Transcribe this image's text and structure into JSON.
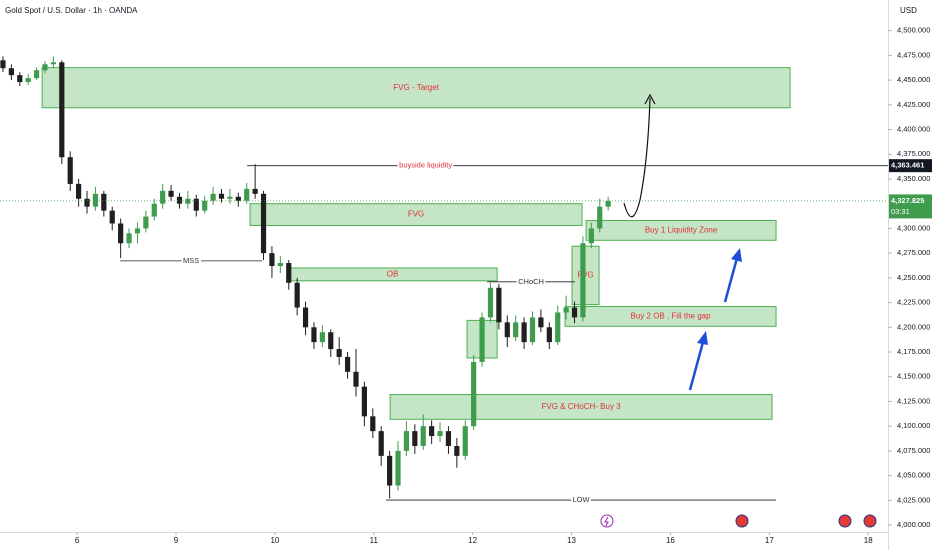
{
  "chart_data": {
    "type": "candlestick",
    "title": "Gold Spot / U.S. Dollar · 1h · OANDA",
    "currency": "USD",
    "up_color": "#3f9c4d",
    "down_color": "#1f1f1f",
    "xlim": [
      -0.78,
      8.2
    ],
    "ylim": [
      3993,
      4531
    ],
    "xticks": [
      {
        "value": 0,
        "label": "6"
      },
      {
        "value": 1,
        "label": "9"
      },
      {
        "value": 2,
        "label": "10"
      },
      {
        "value": 3,
        "label": "11"
      },
      {
        "value": 4,
        "label": "12"
      },
      {
        "value": 5,
        "label": "13"
      },
      {
        "value": 6,
        "label": "16"
      },
      {
        "value": 7,
        "label": "17"
      },
      {
        "value": 8,
        "label": "18"
      }
    ],
    "yticks": [
      {
        "value": 4000,
        "label": "4,000.000"
      },
      {
        "value": 4025,
        "label": "4,025.000"
      },
      {
        "value": 4050,
        "label": "4,050.000"
      },
      {
        "value": 4075,
        "label": "4,075.000"
      },
      {
        "value": 4100,
        "label": "4,100.000"
      },
      {
        "value": 4125,
        "label": "4,125.000"
      },
      {
        "value": 4150,
        "label": "4,150.000"
      },
      {
        "value": 4175,
        "label": "4,175.000"
      },
      {
        "value": 4200,
        "label": "4,200.000"
      },
      {
        "value": 4225,
        "label": "4,225.000"
      },
      {
        "value": 4250,
        "label": "4,250.000"
      },
      {
        "value": 4275,
        "label": "4,275.000"
      },
      {
        "value": 4300,
        "label": "4,300.000"
      },
      {
        "value": 4350,
        "label": "4,350.000"
      },
      {
        "value": 4375,
        "label": "4,375.000"
      },
      {
        "value": 4400,
        "label": "4,400.000"
      },
      {
        "value": 4425,
        "label": "4,425.000"
      },
      {
        "value": 4450,
        "label": "4,450.000"
      },
      {
        "value": 4475,
        "label": "4,475.000"
      },
      {
        "value": 4500,
        "label": "4,500.000"
      }
    ],
    "candles": [
      [
        -0.75,
        4470,
        4474,
        4458,
        4462
      ],
      [
        -0.665,
        4462,
        4466,
        4450,
        4455
      ],
      [
        -0.58,
        4455,
        4458,
        4444,
        4448
      ],
      [
        -0.495,
        4448,
        4456,
        4445,
        4452
      ],
      [
        -0.41,
        4452,
        4463,
        4450,
        4460
      ],
      [
        -0.325,
        4460,
        4469,
        4457,
        4466
      ],
      [
        -0.24,
        4466,
        4474,
        4462,
        4468
      ],
      [
        -0.155,
        4468,
        4470,
        4365,
        4372
      ],
      [
        -0.07,
        4372,
        4378,
        4338,
        4345
      ],
      [
        0.015,
        4345,
        4350,
        4322,
        4330
      ],
      [
        0.1,
        4330,
        4338,
        4315,
        4322
      ],
      [
        0.185,
        4322,
        4342,
        4318,
        4335
      ],
      [
        0.27,
        4335,
        4338,
        4312,
        4318
      ],
      [
        0.355,
        4318,
        4322,
        4298,
        4305
      ],
      [
        0.44,
        4305,
        4310,
        4270,
        4285
      ],
      [
        0.525,
        4285,
        4300,
        4280,
        4295
      ],
      [
        0.61,
        4295,
        4306,
        4285,
        4300
      ],
      [
        0.695,
        4300,
        4318,
        4296,
        4312
      ],
      [
        0.78,
        4312,
        4330,
        4308,
        4325
      ],
      [
        0.865,
        4325,
        4345,
        4320,
        4338
      ],
      [
        0.95,
        4338,
        4344,
        4328,
        4332
      ],
      [
        1.035,
        4332,
        4336,
        4320,
        4325
      ],
      [
        1.12,
        4325,
        4338,
        4320,
        4330
      ],
      [
        1.205,
        4330,
        4334,
        4312,
        4318
      ],
      [
        1.29,
        4318,
        4333,
        4315,
        4328
      ],
      [
        1.375,
        4328,
        4342,
        4324,
        4335
      ],
      [
        1.46,
        4335,
        4340,
        4326,
        4330
      ],
      [
        1.545,
        4330,
        4340,
        4325,
        4332
      ],
      [
        1.63,
        4332,
        4336,
        4322,
        4328
      ],
      [
        1.715,
        4328,
        4346,
        4325,
        4340
      ],
      [
        1.8,
        4340,
        4365,
        4330,
        4335
      ],
      [
        1.885,
        4335,
        4338,
        4268,
        4275
      ],
      [
        1.97,
        4275,
        4282,
        4250,
        4262
      ],
      [
        2.055,
        4262,
        4272,
        4255,
        4265
      ],
      [
        2.14,
        4265,
        4268,
        4238,
        4245
      ],
      [
        2.225,
        4245,
        4250,
        4212,
        4220
      ],
      [
        2.31,
        4220,
        4226,
        4192,
        4200
      ],
      [
        2.395,
        4200,
        4205,
        4178,
        4185
      ],
      [
        2.48,
        4185,
        4202,
        4180,
        4195
      ],
      [
        2.565,
        4195,
        4198,
        4170,
        4178
      ],
      [
        2.65,
        4178,
        4190,
        4162,
        4170
      ],
      [
        2.735,
        4170,
        4175,
        4148,
        4155
      ],
      [
        2.82,
        4155,
        4178,
        4130,
        4140
      ],
      [
        2.905,
        4140,
        4145,
        4100,
        4110
      ],
      [
        2.99,
        4110,
        4118,
        4088,
        4095
      ],
      [
        3.075,
        4095,
        4100,
        4060,
        4070
      ],
      [
        3.16,
        4070,
        4075,
        4027,
        4040
      ],
      [
        3.245,
        4040,
        4085,
        4035,
        4075
      ],
      [
        3.33,
        4075,
        4105,
        4070,
        4095
      ],
      [
        3.415,
        4095,
        4102,
        4072,
        4080
      ],
      [
        3.5,
        4080,
        4112,
        4076,
        4100
      ],
      [
        3.585,
        4100,
        4106,
        4082,
        4090
      ],
      [
        3.67,
        4090,
        4104,
        4084,
        4095
      ],
      [
        3.755,
        4095,
        4100,
        4072,
        4080
      ],
      [
        3.84,
        4080,
        4088,
        4058,
        4070
      ],
      [
        3.925,
        4070,
        4106,
        4066,
        4100
      ],
      [
        4.01,
        4100,
        4172,
        4096,
        4165
      ],
      [
        4.095,
        4165,
        4215,
        4160,
        4210
      ],
      [
        4.18,
        4210,
        4245,
        4205,
        4240
      ],
      [
        4.265,
        4240,
        4244,
        4198,
        4205
      ],
      [
        4.35,
        4205,
        4212,
        4180,
        4190
      ],
      [
        4.435,
        4190,
        4212,
        4186,
        4205
      ],
      [
        4.52,
        4205,
        4210,
        4178,
        4185
      ],
      [
        4.605,
        4185,
        4216,
        4182,
        4210
      ],
      [
        4.69,
        4210,
        4218,
        4195,
        4200
      ],
      [
        4.775,
        4200,
        4205,
        4178,
        4185
      ],
      [
        4.86,
        4185,
        4222,
        4182,
        4215
      ],
      [
        4.945,
        4215,
        4232,
        4208,
        4220
      ],
      [
        5.03,
        4220,
        4226,
        4204,
        4210
      ],
      [
        5.115,
        4210,
        4292,
        4206,
        4285
      ],
      [
        5.2,
        4285,
        4306,
        4280,
        4300
      ],
      [
        5.285,
        4300,
        4330,
        4296,
        4322
      ],
      [
        5.37,
        4322,
        4332,
        4318,
        4327.825
      ]
    ],
    "zone_color": "#4caf50",
    "label_color": "#e0303a",
    "zones": [
      {
        "label": "FVG - Target",
        "x": [
          -0.354,
          7.21
        ],
        "y": [
          4422,
          4462.6
        ]
      },
      {
        "label": "FVG",
        "x": [
          1.749,
          5.106
        ],
        "y": [
          4303,
          4325
        ]
      },
      {
        "label": "OB",
        "x": [
          2.133,
          4.247
        ],
        "y": [
          4247,
          4260
        ]
      },
      {
        "label": "FVG",
        "x": [
          5.005,
          5.278
        ],
        "y": [
          4223,
          4282
        ]
      },
      {
        "label": "Buy 1 Liquidity Zone",
        "x": [
          5.147,
          7.068
        ],
        "y": [
          4288,
          4308
        ]
      },
      {
        "label": "Buy 2  OB , Fill the gap",
        "x": [
          4.934,
          7.068
        ],
        "y": [
          4201,
          4221
        ]
      },
      {
        "label": "FVG & CHoCH- Buy 3",
        "x": [
          3.165,
          7.027
        ],
        "y": [
          4107,
          4132
        ]
      },
      {
        "x": [
          3.943,
          4.247
        ],
        "y": [
          4169,
          4207
        ]
      }
    ],
    "levels": [
      {
        "label": "buyside liquidity",
        "price": 4363.461,
        "x": [
          1.719,
          8.2
        ],
        "color": "#e0303a"
      },
      {
        "label": "MSS",
        "price": 4267.2,
        "x": [
          0.435,
          1.871
        ],
        "color": "#333333"
      },
      {
        "label": "CHoCH",
        "price": 4246,
        "x": [
          4.146,
          5.035
        ],
        "color": "#333333"
      },
      {
        "label": "LOW",
        "price": 4025.3,
        "x": [
          3.124,
          7.068
        ],
        "color": "#333333"
      }
    ],
    "price_labels": [
      {
        "value": 4363.461,
        "label": "4,363.461",
        "color": "#131722"
      },
      {
        "value": 4327.825,
        "label": "4,327.825",
        "countdown": "03:31",
        "color": "#3f9c4d"
      }
    ]
  }
}
